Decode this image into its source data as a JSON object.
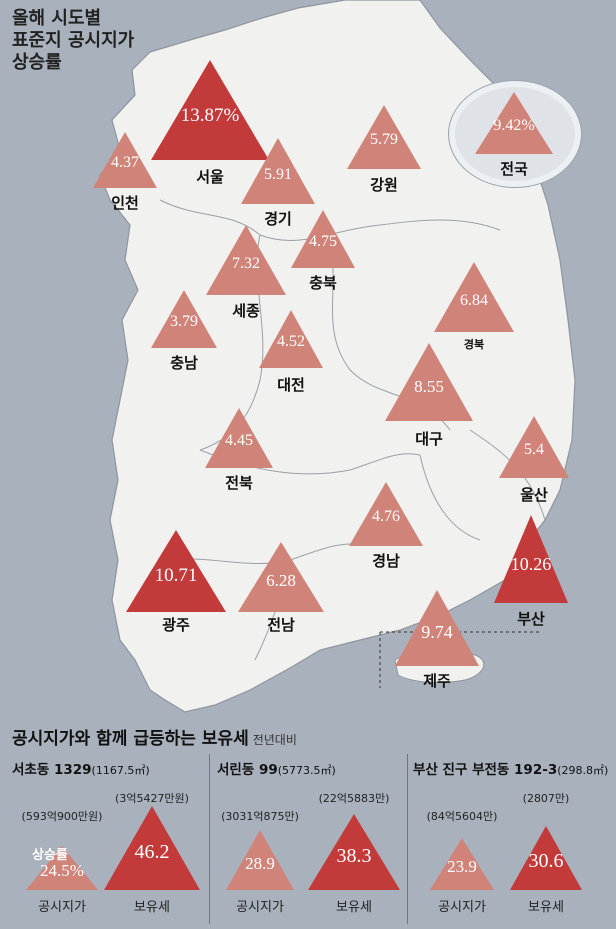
{
  "title": {
    "lines": [
      "올해 시도별",
      "표준지 공시지가",
      "상승률"
    ]
  },
  "colors": {
    "background": "#a9b1bd",
    "land": "#f1f1ef",
    "border": "#8f959d",
    "triangle_light": "#d08479",
    "triangle_dark": "#c23a3a",
    "national_circle": "#dfe3e8"
  },
  "regions": [
    {
      "name": "서울",
      "value": "13.87%",
      "tone": "dark"
    },
    {
      "name": "인천",
      "value": "4.37",
      "tone": "light"
    },
    {
      "name": "경기",
      "value": "5.91",
      "tone": "light"
    },
    {
      "name": "강원",
      "value": "5.79",
      "tone": "light"
    },
    {
      "name": "충북",
      "value": "4.75",
      "tone": "light"
    },
    {
      "name": "세종",
      "value": "7.32",
      "tone": "light"
    },
    {
      "name": "충남",
      "value": "3.79",
      "tone": "light"
    },
    {
      "name": "대전",
      "value": "4.52",
      "tone": "light"
    },
    {
      "name": "경북",
      "value": "6.84",
      "tone": "light"
    },
    {
      "name": "대구",
      "value": "8.55",
      "tone": "light"
    },
    {
      "name": "전북",
      "value": "4.45",
      "tone": "light"
    },
    {
      "name": "울산",
      "value": "5.4",
      "tone": "light"
    },
    {
      "name": "경남",
      "value": "4.76",
      "tone": "light"
    },
    {
      "name": "광주",
      "value": "10.71",
      "tone": "dark"
    },
    {
      "name": "전남",
      "value": "6.28",
      "tone": "light"
    },
    {
      "name": "부산",
      "value": "10.26",
      "tone": "dark"
    },
    {
      "name": "제주",
      "value": "9.74",
      "tone": "light"
    }
  ],
  "national": {
    "name": "전국",
    "value": "9.42%"
  },
  "bottom": {
    "title": "공시지가와 함께 급등하는 보유세",
    "subtitle": "전년대비",
    "rate_tag": "상승률",
    "properties": [
      {
        "name": "서초동 1329",
        "area": "(1167.5㎡)",
        "land_amount": "(593억900만원)",
        "land_rate": "24.5%",
        "land_label": "공시지가",
        "tax_amount": "(3억5427만원)",
        "tax_rate": "46.2",
        "tax_label": "보유세"
      },
      {
        "name": "서린동 99",
        "area": "(5773.5㎡)",
        "land_amount": "(3031억875만)",
        "land_rate": "28.9",
        "land_label": "공시지가",
        "tax_amount": "(22억5883만)",
        "tax_rate": "38.3",
        "tax_label": "보유세"
      },
      {
        "name": "부산 진구 부전동 192-3",
        "area": "(298.8㎡)",
        "land_amount": "(84억5604만)",
        "land_rate": "23.9",
        "land_label": "공시지가",
        "tax_amount": "(2807만)",
        "tax_rate": "30.6",
        "tax_label": "보유세"
      }
    ]
  }
}
